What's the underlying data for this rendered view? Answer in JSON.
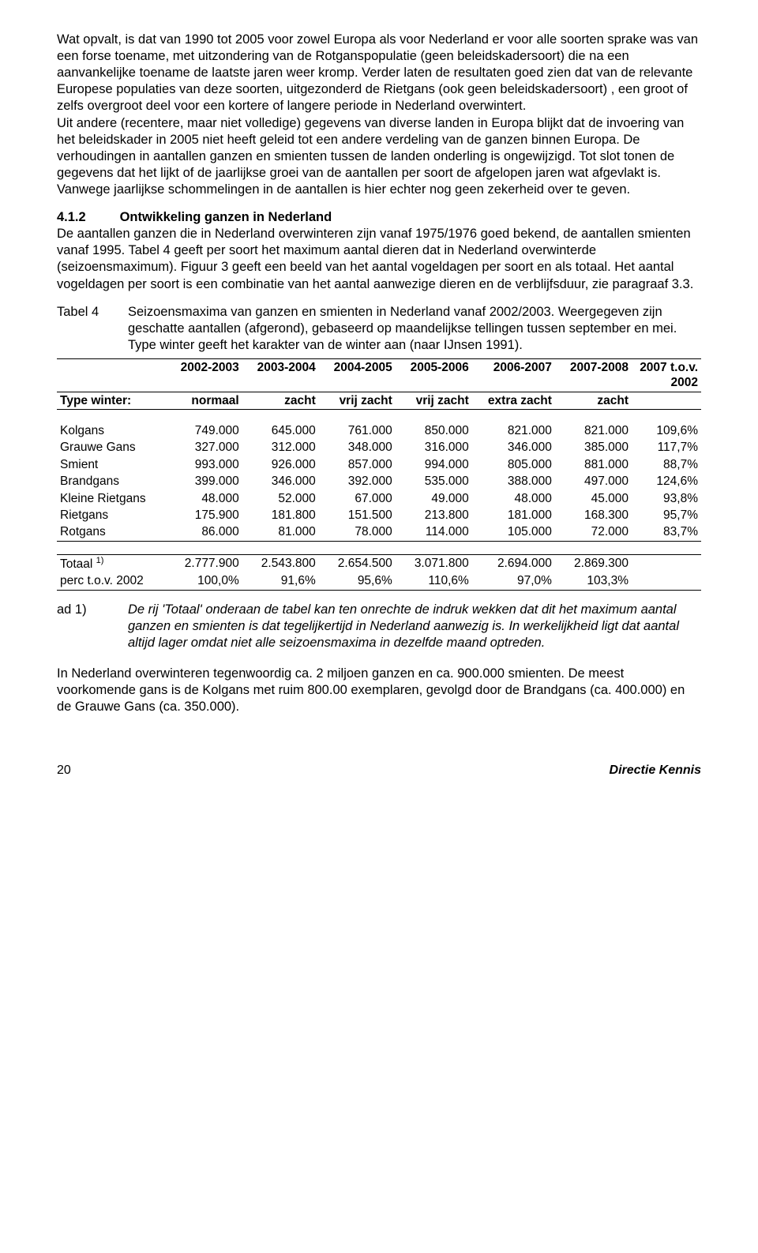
{
  "paragraphs": {
    "p1": "Wat opvalt, is dat van 1990 tot 2005 voor zowel Europa als voor Nederland er voor alle soorten sprake was van een forse toename, met uitzondering van de Rotganspopulatie (geen beleidskadersoort) die na een aanvankelijke toename de laatste jaren weer kromp. Verder laten de resultaten goed zien dat van de relevante Europese populaties van deze soorten, uitgezonderd de Rietgans (ook geen beleidskadersoort) , een groot of zelfs overgroot deel voor een kortere of langere periode in Nederland overwintert.",
    "p1b": "Uit andere (recentere, maar niet volledige) gegevens van diverse landen in Europa blijkt dat de invoering van het beleidskader in 2005 niet heeft geleid tot een andere verdeling van de ganzen binnen Europa. De verhoudingen in aantallen ganzen en smienten tussen de landen onderling is ongewijzigd. Tot slot tonen de gegevens dat het lijkt of de jaarlijkse groei van de aantallen per soort de afgelopen jaren wat afgevlakt is. Vanwege jaarlijkse schommelingen in de aantallen is hier echter nog geen zekerheid over te geven.",
    "section_num": "4.1.2",
    "section_title": "Ontwikkeling ganzen in Nederland",
    "p2": "De aantallen ganzen die in Nederland overwinteren zijn vanaf 1975/1976 goed bekend, de aantallen smienten vanaf 1995. Tabel 4 geeft per soort het maximum aantal dieren dat in Nederland overwinterde (seizoensmaximum). Figuur 3 geeft een beeld van het aantal vogeldagen per soort en als totaal. Het aantal vogeldagen per soort is een combinatie van het aantal aanwezige dieren en de verblijfsduur, zie paragraaf 3.3.",
    "p_final": "In Nederland overwinteren tegenwoordig ca. 2 miljoen ganzen en ca. 900.000 smienten. De meest voorkomende gans is de Kolgans met ruim 800.00 exemplaren, gevolgd door de Brandgans (ca. 400.000) en de Grauwe Gans (ca. 350.000)."
  },
  "tableMeta": {
    "label": "Tabel 4",
    "caption": "Seizoensmaxima van ganzen en smienten in Nederland vanaf 2002/2003. Weergegeven zijn geschatte aantallen (afgerond), gebaseerd op maandelijkse tellingen tussen september en mei. Type winter geeft het karakter van de winter aan (naar IJnsen 1991)."
  },
  "table": {
    "year_headers": [
      "2002-2003",
      "2003-2004",
      "2004-2005",
      "2005-2006",
      "2006-2007",
      "2007-2008",
      "2007 t.o.v. 2002"
    ],
    "type_row_label": "Type winter:",
    "type_row": [
      "normaal",
      "zacht",
      "vrij zacht",
      "vrij zacht",
      "extra zacht",
      "zacht",
      ""
    ],
    "rows": [
      {
        "label": "Kolgans",
        "vals": [
          "749.000",
          "645.000",
          "761.000",
          "850.000",
          "821.000",
          "821.000",
          "109,6%"
        ]
      },
      {
        "label": "Grauwe Gans",
        "vals": [
          "327.000",
          "312.000",
          "348.000",
          "316.000",
          "346.000",
          "385.000",
          "117,7%"
        ]
      },
      {
        "label": "Smient",
        "vals": [
          "993.000",
          "926.000",
          "857.000",
          "994.000",
          "805.000",
          "881.000",
          "88,7%"
        ]
      },
      {
        "label": "Brandgans",
        "vals": [
          "399.000",
          "346.000",
          "392.000",
          "535.000",
          "388.000",
          "497.000",
          "124,6%"
        ]
      },
      {
        "label": "Kleine Rietgans",
        "vals": [
          "48.000",
          "52.000",
          "67.000",
          "49.000",
          "48.000",
          "45.000",
          "93,8%"
        ]
      },
      {
        "label": "Rietgans",
        "vals": [
          "175.900",
          "181.800",
          "151.500",
          "213.800",
          "181.000",
          "168.300",
          "95,7%"
        ]
      },
      {
        "label": "Rotgans",
        "vals": [
          "86.000",
          "81.000",
          "78.000",
          "114.000",
          "105.000",
          "72.000",
          "83,7%"
        ]
      }
    ],
    "totals": [
      {
        "label_html": "Totaal <sup class='fn'>1)</sup>",
        "label": "Totaal 1)",
        "vals": [
          "2.777.900",
          "2.543.800",
          "2.654.500",
          "3.071.800",
          "2.694.000",
          "2.869.300",
          ""
        ]
      },
      {
        "label": "perc t.o.v. 2002",
        "vals": [
          "100,0%",
          "91,6%",
          "95,6%",
          "110,6%",
          "97,0%",
          "103,3%",
          ""
        ]
      }
    ]
  },
  "footnote": {
    "label": "ad 1)",
    "text": "De rij 'Totaal' onderaan de tabel kan ten onrechte de indruk wekken dat dit het maximum aantal ganzen en smienten is dat tegelijkertijd in Nederland aanwezig is. In werkelijkheid ligt dat aantal altijd lager omdat niet alle seizoensmaxima in dezelfde maand optreden."
  },
  "footer": {
    "page": "20",
    "right": "Directie Kennis"
  }
}
